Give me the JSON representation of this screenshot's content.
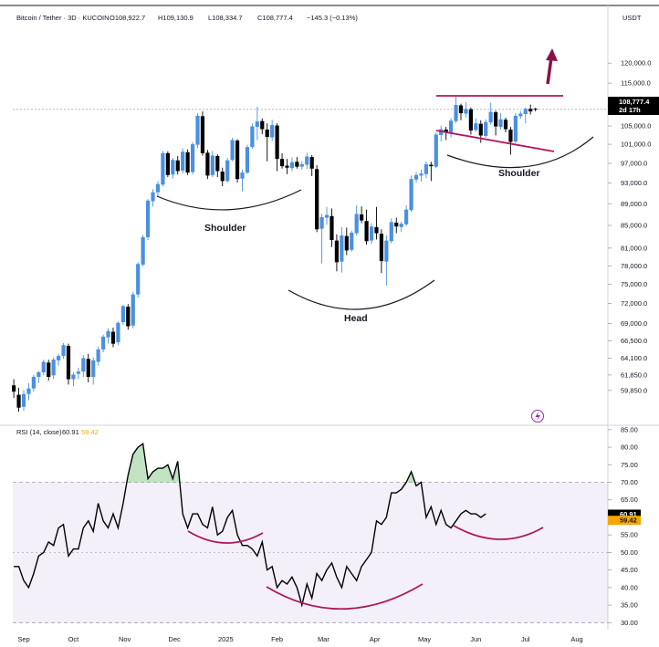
{
  "chart_data": [
    {
      "type": "candlestick",
      "title": "Bitcoin / Tether · 3D · KUCOIN",
      "ohlc_label": {
        "o": "O108,922.7",
        "h": "H109,130.9",
        "l": "L108,334.7",
        "c": "C108,777.4",
        "change": "−145.3 (−0.13%)"
      },
      "currency": "USDT",
      "scale": "log",
      "ylim": [
        57000,
        127000
      ],
      "y_ticks": [
        "120,000.0",
        "115,000.0",
        "110,000.0",
        "105,000.0",
        "101,000.0",
        "97,000.0",
        "93,000.0",
        "89,000.0",
        "85,000.0",
        "81,000.0",
        "78,000.0",
        "75,000.0",
        "72,000.0",
        "69,000.0",
        "66,500.0",
        "64,100.0",
        "61,850.0",
        "59,850.0"
      ],
      "x_labels": [
        "Sep",
        "Oct",
        "Nov",
        "Dec",
        "2025",
        "Feb",
        "Mar",
        "Apr",
        "May",
        "Jun",
        "Jul",
        "Aug"
      ],
      "x_label_dates": [
        "2024-09-01",
        "2024-10-01",
        "2024-11-01",
        "2024-12-01",
        "2025-01-01",
        "2025-02-01",
        "2025-03-01",
        "2025-04-01",
        "2025-05-01",
        "2025-06-01",
        "2025-07-01",
        "2025-08-01"
      ],
      "last_price_label": "108,777.4",
      "last_price": 108777.4,
      "countdown_label": "2d 17h",
      "annotations": {
        "left_shoulder": "Shoulder",
        "head": "Head",
        "right_shoulder": "Shoulder"
      },
      "up_color": "#4a90e2",
      "down_color": "#000000",
      "trendline_color": "#b0165f",
      "candles": [
        {
          "date": "2024-08-26",
          "o": 60500,
          "h": 61300,
          "l": 58900,
          "c": 59700
        },
        {
          "date": "2024-08-29",
          "o": 59300,
          "h": 60200,
          "l": 57200,
          "c": 57700
        },
        {
          "date": "2024-09-01",
          "o": 57800,
          "h": 59900,
          "l": 57300,
          "c": 59400
        },
        {
          "date": "2024-09-04",
          "o": 59400,
          "h": 60800,
          "l": 58600,
          "c": 60100
        },
        {
          "date": "2024-09-07",
          "o": 60100,
          "h": 61900,
          "l": 59700,
          "c": 61600
        },
        {
          "date": "2024-09-10",
          "o": 61600,
          "h": 62400,
          "l": 60800,
          "c": 62200
        },
        {
          "date": "2024-09-13",
          "o": 62200,
          "h": 63900,
          "l": 61800,
          "c": 63600
        },
        {
          "date": "2024-09-16",
          "o": 63500,
          "h": 63900,
          "l": 61100,
          "c": 61600
        },
        {
          "date": "2024-09-19",
          "o": 61800,
          "h": 64200,
          "l": 61300,
          "c": 63900
        },
        {
          "date": "2024-09-22",
          "o": 63800,
          "h": 64700,
          "l": 63100,
          "c": 64400
        },
        {
          "date": "2024-09-25",
          "o": 64400,
          "h": 66200,
          "l": 64000,
          "c": 65900
        },
        {
          "date": "2024-09-28",
          "o": 65800,
          "h": 66100,
          "l": 60600,
          "c": 61300
        },
        {
          "date": "2024-10-01",
          "o": 61300,
          "h": 62200,
          "l": 60400,
          "c": 61900
        },
        {
          "date": "2024-10-04",
          "o": 62000,
          "h": 62800,
          "l": 61300,
          "c": 62300
        },
        {
          "date": "2024-10-07",
          "o": 62300,
          "h": 64500,
          "l": 61600,
          "c": 64100
        },
        {
          "date": "2024-10-10",
          "o": 64000,
          "h": 64700,
          "l": 60900,
          "c": 61600
        },
        {
          "date": "2024-10-13",
          "o": 61600,
          "h": 64200,
          "l": 60600,
          "c": 63800
        },
        {
          "date": "2024-10-16",
          "o": 63600,
          "h": 65700,
          "l": 63100,
          "c": 65300
        },
        {
          "date": "2024-10-19",
          "o": 65300,
          "h": 67400,
          "l": 64900,
          "c": 67100
        },
        {
          "date": "2024-10-22",
          "o": 67000,
          "h": 68300,
          "l": 66100,
          "c": 67900
        },
        {
          "date": "2024-10-25",
          "o": 67800,
          "h": 68400,
          "l": 65600,
          "c": 66100
        },
        {
          "date": "2024-10-28",
          "o": 66300,
          "h": 69300,
          "l": 65900,
          "c": 69100
        },
        {
          "date": "2024-10-31",
          "o": 69200,
          "h": 71800,
          "l": 68800,
          "c": 71600
        },
        {
          "date": "2024-11-03",
          "o": 71500,
          "h": 71900,
          "l": 68100,
          "c": 68600
        },
        {
          "date": "2024-11-06",
          "o": 68700,
          "h": 73800,
          "l": 68300,
          "c": 73400
        },
        {
          "date": "2024-11-09",
          "o": 73400,
          "h": 78600,
          "l": 72900,
          "c": 78300
        },
        {
          "date": "2024-11-12",
          "o": 78200,
          "h": 83300,
          "l": 77900,
          "c": 82900
        },
        {
          "date": "2024-11-15",
          "o": 82900,
          "h": 89900,
          "l": 82400,
          "c": 89600
        },
        {
          "date": "2024-11-18",
          "o": 89500,
          "h": 91800,
          "l": 88500,
          "c": 91200
        },
        {
          "date": "2024-11-21",
          "o": 91200,
          "h": 93400,
          "l": 90400,
          "c": 92800
        },
        {
          "date": "2024-11-24",
          "o": 92700,
          "h": 99600,
          "l": 92300,
          "c": 99100
        },
        {
          "date": "2024-11-27",
          "o": 99100,
          "h": 99500,
          "l": 94200,
          "c": 94600
        },
        {
          "date": "2024-11-30",
          "o": 94700,
          "h": 98100,
          "l": 93900,
          "c": 97700
        },
        {
          "date": "2024-12-03",
          "o": 97600,
          "h": 98500,
          "l": 94700,
          "c": 95400
        },
        {
          "date": "2024-12-06",
          "o": 95500,
          "h": 100100,
          "l": 94900,
          "c": 99400
        },
        {
          "date": "2024-12-09",
          "o": 99300,
          "h": 99900,
          "l": 94600,
          "c": 95100
        },
        {
          "date": "2024-12-12",
          "o": 95200,
          "h": 101500,
          "l": 94700,
          "c": 101000
        },
        {
          "date": "2024-12-15",
          "o": 100900,
          "h": 107900,
          "l": 100200,
          "c": 107300
        },
        {
          "date": "2024-12-18",
          "o": 107200,
          "h": 108300,
          "l": 98600,
          "c": 99100
        },
        {
          "date": "2024-12-21",
          "o": 99200,
          "h": 99800,
          "l": 93800,
          "c": 94500
        },
        {
          "date": "2024-12-24",
          "o": 94600,
          "h": 99600,
          "l": 94200,
          "c": 98600
        },
        {
          "date": "2024-12-27",
          "o": 98500,
          "h": 98900,
          "l": 94200,
          "c": 95400
        },
        {
          "date": "2024-12-30",
          "o": 95300,
          "h": 96100,
          "l": 92400,
          "c": 93400
        },
        {
          "date": "2025-01-02",
          "o": 93400,
          "h": 98100,
          "l": 93100,
          "c": 97600
        },
        {
          "date": "2025-01-05",
          "o": 97700,
          "h": 102400,
          "l": 97400,
          "c": 101900
        },
        {
          "date": "2025-01-08",
          "o": 101800,
          "h": 102100,
          "l": 93100,
          "c": 93800
        },
        {
          "date": "2025-01-11",
          "o": 93900,
          "h": 95700,
          "l": 91400,
          "c": 95100
        },
        {
          "date": "2025-01-14",
          "o": 95100,
          "h": 100900,
          "l": 94800,
          "c": 100400
        },
        {
          "date": "2025-01-17",
          "o": 100400,
          "h": 105600,
          "l": 100000,
          "c": 104900
        },
        {
          "date": "2025-01-20",
          "o": 104800,
          "h": 109400,
          "l": 101900,
          "c": 106000
        },
        {
          "date": "2025-01-23",
          "o": 106100,
          "h": 106700,
          "l": 103200,
          "c": 104300
        },
        {
          "date": "2025-01-26",
          "o": 104200,
          "h": 105600,
          "l": 97400,
          "c": 102600
        },
        {
          "date": "2025-01-29",
          "o": 102500,
          "h": 106400,
          "l": 101700,
          "c": 105200
        },
        {
          "date": "2025-02-01",
          "o": 105100,
          "h": 105600,
          "l": 95400,
          "c": 97900
        },
        {
          "date": "2025-02-04",
          "o": 97900,
          "h": 99100,
          "l": 95900,
          "c": 96400
        },
        {
          "date": "2025-02-07",
          "o": 96500,
          "h": 97900,
          "l": 94800,
          "c": 96100
        },
        {
          "date": "2025-02-10",
          "o": 96000,
          "h": 98200,
          "l": 95400,
          "c": 97200
        },
        {
          "date": "2025-02-13",
          "o": 97300,
          "h": 98300,
          "l": 95900,
          "c": 96300
        },
        {
          "date": "2025-02-16",
          "o": 96300,
          "h": 97400,
          "l": 95700,
          "c": 96800
        },
        {
          "date": "2025-02-19",
          "o": 96700,
          "h": 99200,
          "l": 95800,
          "c": 98400
        },
        {
          "date": "2025-02-22",
          "o": 98300,
          "h": 98700,
          "l": 94400,
          "c": 95900
        },
        {
          "date": "2025-02-25",
          "o": 95800,
          "h": 96600,
          "l": 83800,
          "c": 84300
        },
        {
          "date": "2025-02-28",
          "o": 84400,
          "h": 87100,
          "l": 78400,
          "c": 86500
        },
        {
          "date": "2025-03-03",
          "o": 86400,
          "h": 88400,
          "l": 85100,
          "c": 86900
        },
        {
          "date": "2025-03-06",
          "o": 86700,
          "h": 88100,
          "l": 81200,
          "c": 82400
        },
        {
          "date": "2025-03-09",
          "o": 82300,
          "h": 83400,
          "l": 77100,
          "c": 78600
        },
        {
          "date": "2025-03-12",
          "o": 78700,
          "h": 84700,
          "l": 76900,
          "c": 83200
        },
        {
          "date": "2025-03-15",
          "o": 83100,
          "h": 84600,
          "l": 79800,
          "c": 80600
        },
        {
          "date": "2025-03-18",
          "o": 80700,
          "h": 84100,
          "l": 80400,
          "c": 83700
        },
        {
          "date": "2025-03-21",
          "o": 83600,
          "h": 88700,
          "l": 83200,
          "c": 87100
        },
        {
          "date": "2025-03-24",
          "o": 87000,
          "h": 88500,
          "l": 85400,
          "c": 85900
        },
        {
          "date": "2025-03-27",
          "o": 85800,
          "h": 87900,
          "l": 81600,
          "c": 82200
        },
        {
          "date": "2025-03-30",
          "o": 82300,
          "h": 85400,
          "l": 81700,
          "c": 84800
        },
        {
          "date": "2025-04-02",
          "o": 84700,
          "h": 88400,
          "l": 82500,
          "c": 83600
        },
        {
          "date": "2025-04-05",
          "o": 83500,
          "h": 84300,
          "l": 76800,
          "c": 78800
        },
        {
          "date": "2025-04-08",
          "o": 78700,
          "h": 83200,
          "l": 74800,
          "c": 82300
        },
        {
          "date": "2025-04-11",
          "o": 82200,
          "h": 86300,
          "l": 81800,
          "c": 85600
        },
        {
          "date": "2025-04-14",
          "o": 85500,
          "h": 86400,
          "l": 83600,
          "c": 84800
        },
        {
          "date": "2025-04-17",
          "o": 84700,
          "h": 85700,
          "l": 83800,
          "c": 85300
        },
        {
          "date": "2025-04-20",
          "o": 85200,
          "h": 88700,
          "l": 84900,
          "c": 87900
        },
        {
          "date": "2025-04-23",
          "o": 87800,
          "h": 94500,
          "l": 87500,
          "c": 93800
        },
        {
          "date": "2025-04-26",
          "o": 93700,
          "h": 95200,
          "l": 93100,
          "c": 94600
        },
        {
          "date": "2025-04-29",
          "o": 94500,
          "h": 95700,
          "l": 93300,
          "c": 94900
        },
        {
          "date": "2025-05-02",
          "o": 94800,
          "h": 97400,
          "l": 94000,
          "c": 96800
        },
        {
          "date": "2025-05-05",
          "o": 96700,
          "h": 97300,
          "l": 93400,
          "c": 96400
        },
        {
          "date": "2025-05-08",
          "o": 96300,
          "h": 103600,
          "l": 96000,
          "c": 103100
        },
        {
          "date": "2025-05-11",
          "o": 103000,
          "h": 105100,
          "l": 101600,
          "c": 104300
        },
        {
          "date": "2025-05-14",
          "o": 104200,
          "h": 104800,
          "l": 101900,
          "c": 103500
        },
        {
          "date": "2025-05-17",
          "o": 103400,
          "h": 106800,
          "l": 102500,
          "c": 106200
        },
        {
          "date": "2025-05-20",
          "o": 106100,
          "h": 111900,
          "l": 105700,
          "c": 109800
        },
        {
          "date": "2025-05-23",
          "o": 109700,
          "h": 110100,
          "l": 106300,
          "c": 107900
        },
        {
          "date": "2025-05-26",
          "o": 107800,
          "h": 110400,
          "l": 106900,
          "c": 108900
        },
        {
          "date": "2025-05-29",
          "o": 108800,
          "h": 109200,
          "l": 103100,
          "c": 104000
        },
        {
          "date": "2025-06-01",
          "o": 104100,
          "h": 106700,
          "l": 103700,
          "c": 105600
        },
        {
          "date": "2025-06-04",
          "o": 105500,
          "h": 106300,
          "l": 101300,
          "c": 102900
        },
        {
          "date": "2025-06-07",
          "o": 102800,
          "h": 106500,
          "l": 102400,
          "c": 105900
        },
        {
          "date": "2025-06-10",
          "o": 105800,
          "h": 110300,
          "l": 105300,
          "c": 108200
        },
        {
          "date": "2025-06-13",
          "o": 108100,
          "h": 108500,
          "l": 102900,
          "c": 104900
        },
        {
          "date": "2025-06-16",
          "o": 104800,
          "h": 107900,
          "l": 104200,
          "c": 106500
        },
        {
          "date": "2025-06-19",
          "o": 106400,
          "h": 106900,
          "l": 103600,
          "c": 104300
        },
        {
          "date": "2025-06-22",
          "o": 104200,
          "h": 104800,
          "l": 98800,
          "c": 101500
        },
        {
          "date": "2025-06-25",
          "o": 101600,
          "h": 107900,
          "l": 101200,
          "c": 107300
        },
        {
          "date": "2025-06-28",
          "o": 107200,
          "h": 108400,
          "l": 106600,
          "c": 107800
        },
        {
          "date": "2025-07-01",
          "o": 107700,
          "h": 109200,
          "l": 105600,
          "c": 108900
        },
        {
          "date": "2025-07-04",
          "o": 108900,
          "h": 109900,
          "l": 107600,
          "c": 108300
        },
        {
          "date": "2025-07-07",
          "o": 108922.7,
          "h": 109130.9,
          "l": 108334.7,
          "c": 108777.4
        }
      ]
    },
    {
      "type": "line",
      "title": "RSI (14, close)",
      "rsi_value_label": "60.91",
      "ma_value_label": "59.42",
      "rsi_value": 60.91,
      "ma_value": 59.42,
      "ylim": [
        28,
        86
      ],
      "y_ticks": [
        "85.00",
        "80.00",
        "75.00",
        "70.00",
        "65.00",
        "60.00",
        "55.00",
        "50.00",
        "45.00",
        "40.00",
        "35.00",
        "30.00"
      ],
      "bands": {
        "upper": 70,
        "middle": 50,
        "lower": 30
      },
      "band_color": "#7e57c2",
      "line_color": "#000000",
      "ma_color": "#f7a600",
      "overbought_fill": "#4caf50",
      "series": [
        {
          "values": [
            46,
            46,
            42,
            40,
            44,
            49,
            50,
            53,
            52,
            57,
            58,
            49,
            51,
            51,
            57,
            59,
            56,
            64,
            59,
            57,
            61,
            57,
            64,
            72,
            78,
            80,
            81,
            71,
            73,
            74,
            74,
            75,
            71,
            76,
            61,
            57,
            61,
            61,
            58,
            57,
            63,
            55,
            56,
            60,
            62,
            55,
            52,
            52,
            51,
            49,
            53,
            45,
            46,
            40,
            42,
            41,
            43,
            40,
            35,
            41,
            37,
            44,
            42,
            45,
            47,
            43,
            40,
            46,
            44,
            42,
            46,
            48,
            50,
            59,
            58,
            60,
            67,
            67,
            68,
            70,
            73,
            69,
            70,
            60,
            63,
            58,
            62,
            58,
            57,
            59,
            61,
            62,
            61,
            61,
            60,
            61
          ]
        }
      ]
    }
  ]
}
